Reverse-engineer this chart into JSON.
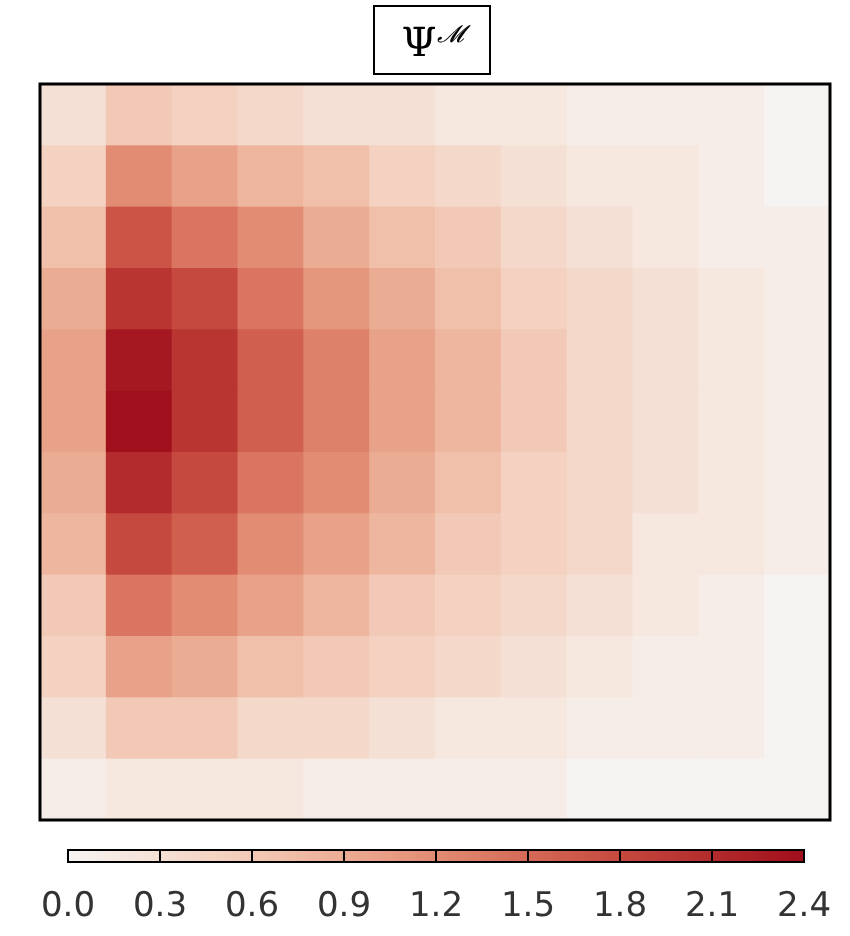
{
  "chart_data": {
    "type": "heatmap",
    "title": "Ψ$^{𝓜}$",
    "categories": [
      null,
      null,
      null,
      null,
      null,
      null,
      null,
      null,
      null,
      null,
      null,
      null
    ],
    "y_categories": [
      null,
      null,
      null,
      null,
      null,
      null,
      null,
      null,
      null,
      null,
      null,
      null
    ],
    "cells": [
      [
        0.3,
        0.6,
        0.5,
        0.4,
        0.3,
        0.3,
        0.2,
        0.2,
        0.1,
        0.1,
        0.1,
        0.0
      ],
      [
        0.5,
        1.2,
        1.0,
        0.8,
        0.7,
        0.5,
        0.4,
        0.3,
        0.2,
        0.2,
        0.1,
        0.0
      ],
      [
        0.7,
        1.7,
        1.4,
        1.2,
        0.9,
        0.7,
        0.6,
        0.4,
        0.3,
        0.2,
        0.1,
        0.1
      ],
      [
        0.9,
        2.0,
        1.8,
        1.4,
        1.1,
        0.9,
        0.7,
        0.5,
        0.4,
        0.3,
        0.2,
        0.1
      ],
      [
        1.0,
        2.3,
        2.0,
        1.6,
        1.3,
        1.0,
        0.8,
        0.6,
        0.4,
        0.3,
        0.2,
        0.1
      ],
      [
        1.0,
        2.4,
        2.0,
        1.6,
        1.3,
        1.0,
        0.8,
        0.6,
        0.4,
        0.3,
        0.2,
        0.1
      ],
      [
        0.9,
        2.1,
        1.8,
        1.4,
        1.2,
        0.9,
        0.7,
        0.5,
        0.4,
        0.3,
        0.2,
        0.1
      ],
      [
        0.8,
        1.8,
        1.6,
        1.2,
        1.0,
        0.8,
        0.6,
        0.5,
        0.4,
        0.2,
        0.2,
        0.1
      ],
      [
        0.6,
        1.4,
        1.2,
        1.0,
        0.8,
        0.6,
        0.5,
        0.4,
        0.3,
        0.2,
        0.1,
        0.0
      ],
      [
        0.5,
        1.0,
        0.9,
        0.7,
        0.6,
        0.5,
        0.4,
        0.3,
        0.2,
        0.1,
        0.1,
        0.0
      ],
      [
        0.3,
        0.6,
        0.6,
        0.4,
        0.4,
        0.3,
        0.2,
        0.2,
        0.1,
        0.1,
        0.1,
        0.0
      ],
      [
        0.1,
        0.2,
        0.2,
        0.2,
        0.1,
        0.1,
        0.1,
        0.1,
        0.0,
        0.0,
        0.0,
        0.0
      ]
    ],
    "clim": [
      0,
      2.4
    ],
    "cticks": [
      {
        "value": 0,
        "label": "0.0"
      },
      {
        "value": 0.3,
        "label": "0.3"
      },
      {
        "value": 0.6,
        "label": "0.6"
      },
      {
        "value": 0.9,
        "label": "0.9"
      },
      {
        "value": 1.2,
        "label": "1.2"
      },
      {
        "value": 1.5,
        "label": "1.5"
      },
      {
        "value": 1.8,
        "label": "1.8"
      },
      {
        "value": 2.1,
        "label": "2.1"
      },
      {
        "value": 2.4,
        "label": "2.4"
      }
    ]
  }
}
